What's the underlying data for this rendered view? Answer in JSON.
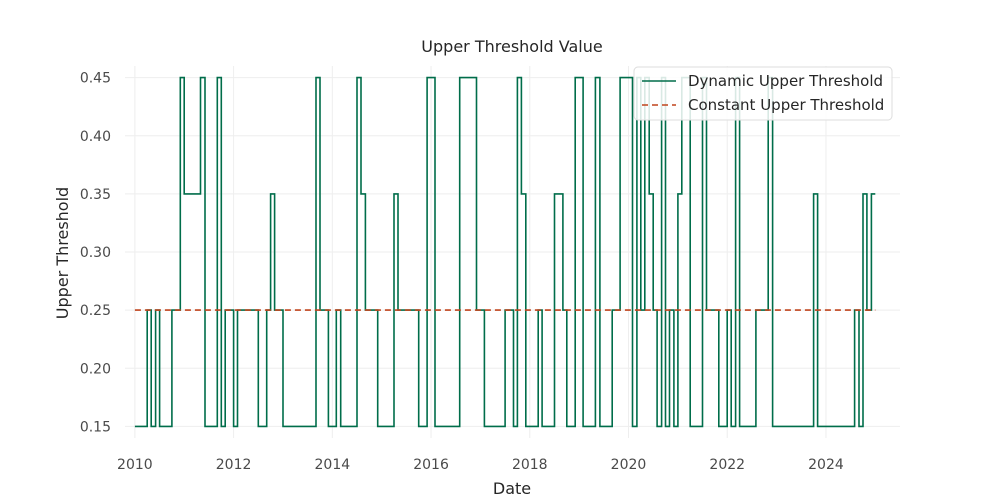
{
  "chart_data": {
    "type": "line",
    "title": "Upper Threshold Value",
    "xlabel": "Date",
    "ylabel": "Upper Threshold",
    "xlim": [
      2009.8,
      2025.5
    ],
    "ylim": [
      0.14,
      0.46
    ],
    "x_ticks": [
      2010,
      2012,
      2014,
      2016,
      2018,
      2020,
      2022,
      2024
    ],
    "y_ticks": [
      0.15,
      0.2,
      0.25,
      0.3,
      0.35,
      0.4,
      0.45
    ],
    "y_tick_labels": [
      "0.15",
      "0.20",
      "0.25",
      "0.30",
      "0.35",
      "0.40",
      "0.45"
    ],
    "grid": true,
    "legend_position": "top-right",
    "series": [
      {
        "name": "Dynamic Upper Threshold",
        "color": "#006d4a",
        "style": "step",
        "points": [
          [
            2010.0,
            0.15
          ],
          [
            2010.25,
            0.25
          ],
          [
            2010.33,
            0.15
          ],
          [
            2010.42,
            0.25
          ],
          [
            2010.5,
            0.15
          ],
          [
            2010.75,
            0.25
          ],
          [
            2010.92,
            0.45
          ],
          [
            2011.0,
            0.35
          ],
          [
            2011.33,
            0.45
          ],
          [
            2011.42,
            0.15
          ],
          [
            2011.67,
            0.45
          ],
          [
            2011.75,
            0.15
          ],
          [
            2011.83,
            0.25
          ],
          [
            2012.0,
            0.15
          ],
          [
            2012.08,
            0.25
          ],
          [
            2012.5,
            0.15
          ],
          [
            2012.67,
            0.25
          ],
          [
            2012.75,
            0.35
          ],
          [
            2012.83,
            0.25
          ],
          [
            2013.0,
            0.15
          ],
          [
            2013.67,
            0.45
          ],
          [
            2013.75,
            0.25
          ],
          [
            2013.92,
            0.15
          ],
          [
            2014.08,
            0.25
          ],
          [
            2014.17,
            0.15
          ],
          [
            2014.5,
            0.45
          ],
          [
            2014.58,
            0.35
          ],
          [
            2014.67,
            0.25
          ],
          [
            2014.92,
            0.15
          ],
          [
            2015.25,
            0.35
          ],
          [
            2015.33,
            0.25
          ],
          [
            2015.75,
            0.15
          ],
          [
            2015.92,
            0.45
          ],
          [
            2016.08,
            0.15
          ],
          [
            2016.58,
            0.45
          ],
          [
            2016.92,
            0.25
          ],
          [
            2017.08,
            0.15
          ],
          [
            2017.5,
            0.25
          ],
          [
            2017.67,
            0.15
          ],
          [
            2017.75,
            0.45
          ],
          [
            2017.83,
            0.35
          ],
          [
            2017.92,
            0.15
          ],
          [
            2018.17,
            0.25
          ],
          [
            2018.25,
            0.15
          ],
          [
            2018.5,
            0.35
          ],
          [
            2018.67,
            0.25
          ],
          [
            2018.75,
            0.15
          ],
          [
            2018.92,
            0.45
          ],
          [
            2019.08,
            0.15
          ],
          [
            2019.33,
            0.45
          ],
          [
            2019.42,
            0.15
          ],
          [
            2019.67,
            0.25
          ],
          [
            2019.83,
            0.45
          ],
          [
            2020.08,
            0.15
          ],
          [
            2020.17,
            0.45
          ],
          [
            2020.25,
            0.25
          ],
          [
            2020.33,
            0.45
          ],
          [
            2020.42,
            0.35
          ],
          [
            2020.5,
            0.25
          ],
          [
            2020.58,
            0.15
          ],
          [
            2020.67,
            0.45
          ],
          [
            2020.75,
            0.15
          ],
          [
            2020.83,
            0.25
          ],
          [
            2020.92,
            0.15
          ],
          [
            2021.0,
            0.35
          ],
          [
            2021.08,
            0.45
          ],
          [
            2021.25,
            0.15
          ],
          [
            2021.5,
            0.45
          ],
          [
            2021.58,
            0.25
          ],
          [
            2021.83,
            0.15
          ],
          [
            2022.0,
            0.25
          ],
          [
            2022.08,
            0.15
          ],
          [
            2022.17,
            0.45
          ],
          [
            2022.25,
            0.15
          ],
          [
            2022.58,
            0.25
          ],
          [
            2022.83,
            0.45
          ],
          [
            2022.92,
            0.15
          ],
          [
            2023.75,
            0.35
          ],
          [
            2023.83,
            0.15
          ],
          [
            2024.58,
            0.25
          ],
          [
            2024.67,
            0.15
          ],
          [
            2024.75,
            0.35
          ],
          [
            2024.83,
            0.25
          ],
          [
            2024.92,
            0.35
          ],
          [
            2025.0,
            0.35
          ]
        ]
      },
      {
        "name": "Constant Upper Threshold",
        "color": "#c0441c",
        "style": "dashed",
        "points": [
          [
            2010.0,
            0.25
          ],
          [
            2025.0,
            0.25
          ]
        ]
      }
    ]
  }
}
